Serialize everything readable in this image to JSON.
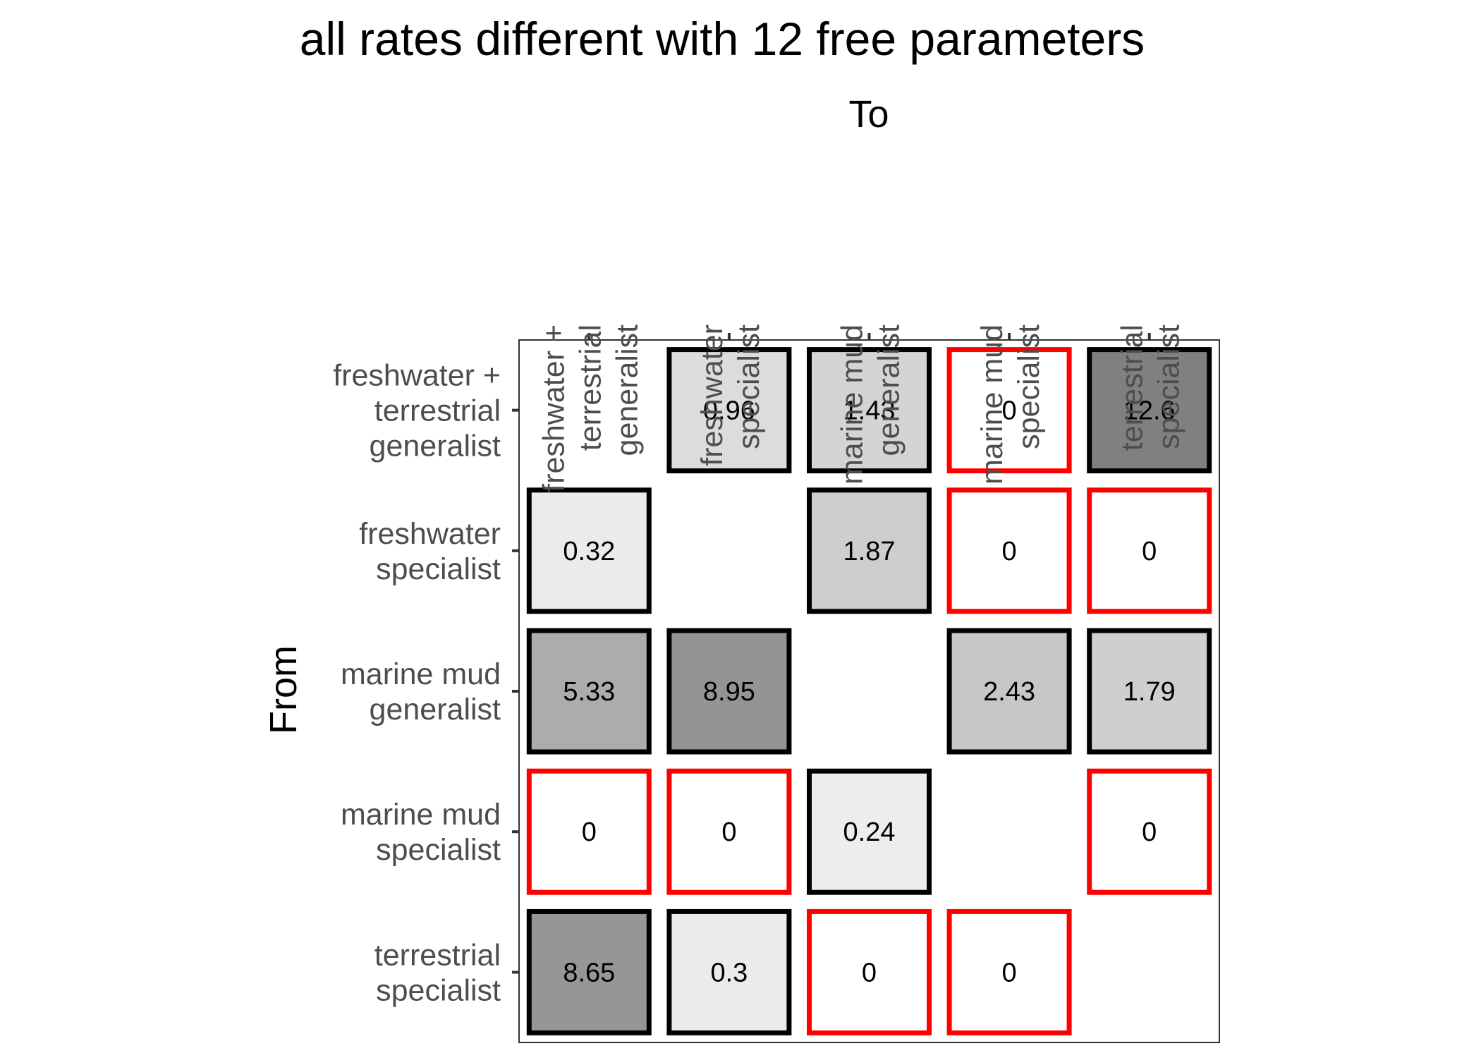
{
  "chart_data": {
    "type": "heatmap",
    "title": "all rates different with 12 free parameters",
    "xlabel": "To",
    "ylabel": "From",
    "categories": [
      [
        "freshwater +",
        "terrestrial",
        "generalist"
      ],
      [
        "freshwater",
        "specialist"
      ],
      [
        "marine mud",
        "generalist"
      ],
      [
        "marine mud",
        "specialist"
      ],
      [
        "terrestrial",
        "specialist"
      ]
    ],
    "x_position": "top",
    "fill_scale": {
      "low": "#ffffff",
      "high": "#808080",
      "max_value": 12.6
    },
    "border_colors": {
      "nonzero": "#000000",
      "zero": "#ff0000"
    },
    "cells": [
      {
        "from": 0,
        "to": 1,
        "value": 0.96,
        "label": "0.96"
      },
      {
        "from": 0,
        "to": 2,
        "value": 1.43,
        "label": "1.43"
      },
      {
        "from": 0,
        "to": 3,
        "value": 0,
        "label": "0"
      },
      {
        "from": 0,
        "to": 4,
        "value": 12.6,
        "label": "12.6"
      },
      {
        "from": 1,
        "to": 0,
        "value": 0.32,
        "label": "0.32"
      },
      {
        "from": 1,
        "to": 2,
        "value": 1.87,
        "label": "1.87"
      },
      {
        "from": 1,
        "to": 3,
        "value": 0,
        "label": "0"
      },
      {
        "from": 1,
        "to": 4,
        "value": 0,
        "label": "0"
      },
      {
        "from": 2,
        "to": 0,
        "value": 5.33,
        "label": "5.33"
      },
      {
        "from": 2,
        "to": 1,
        "value": 8.95,
        "label": "8.95"
      },
      {
        "from": 2,
        "to": 3,
        "value": 2.43,
        "label": "2.43"
      },
      {
        "from": 2,
        "to": 4,
        "value": 1.79,
        "label": "1.79"
      },
      {
        "from": 3,
        "to": 0,
        "value": 0,
        "label": "0"
      },
      {
        "from": 3,
        "to": 1,
        "value": 0,
        "label": "0"
      },
      {
        "from": 3,
        "to": 2,
        "value": 0.24,
        "label": "0.24"
      },
      {
        "from": 3,
        "to": 4,
        "value": 0,
        "label": "0"
      },
      {
        "from": 4,
        "to": 0,
        "value": 8.65,
        "label": "8.65"
      },
      {
        "from": 4,
        "to": 1,
        "value": 0.3,
        "label": "0.3"
      },
      {
        "from": 4,
        "to": 2,
        "value": 0,
        "label": "0"
      },
      {
        "from": 4,
        "to": 3,
        "value": 0,
        "label": "0"
      }
    ]
  }
}
